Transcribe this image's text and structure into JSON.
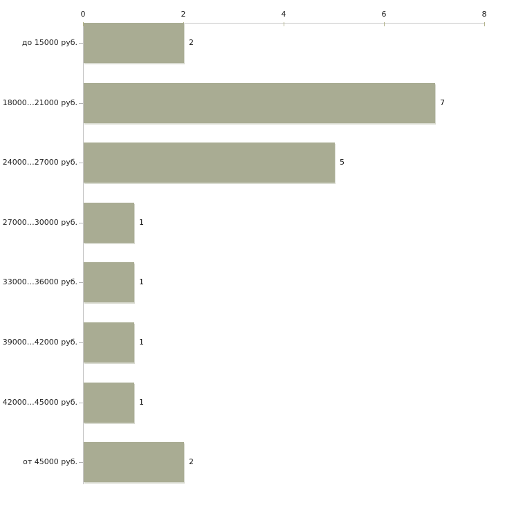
{
  "chart_data": {
    "type": "bar",
    "orientation": "horizontal",
    "title": "",
    "xlabel": "",
    "ylabel": "",
    "legend": "none",
    "grid": "off",
    "categories": [
      "до 15000 руб.",
      "18000…21000 руб.",
      "24000…27000 руб.",
      "27000…30000 руб.",
      "33000…36000 руб.",
      "39000…42000 руб.",
      "42000…45000 руб.",
      "от 45000 руб."
    ],
    "values": [
      2,
      7,
      5,
      1,
      1,
      1,
      1,
      2
    ],
    "value_labels": [
      "2",
      "7",
      "5",
      "1",
      "1",
      "1",
      "1",
      "2"
    ],
    "x_ticks": [
      "0",
      "2",
      "4",
      "6",
      "8"
    ],
    "xlim": [
      0,
      8
    ],
    "colors": {
      "bar_fill": "#a9ac93",
      "bar_edge_highlight": "#d9dbd1",
      "axis_line": "#c6c6c6",
      "x_tick_mark": "#b2b28a",
      "y_tick_mark": "#b0b0b0",
      "label_text": "#222222",
      "background": "#ffffff"
    }
  }
}
